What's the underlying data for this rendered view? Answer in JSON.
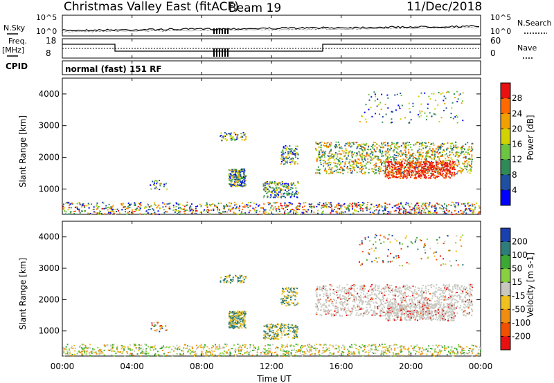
{
  "header": {
    "station": "Christmas Valley East (fitACF)",
    "beam": "Beam 19",
    "date": "11/Dec/2018"
  },
  "noise_panel": {
    "left_label": "N.Sky",
    "right_label": "N.Search",
    "left_ticks": [
      "10^5",
      "10^0"
    ],
    "right_ticks": [
      "10^5",
      "10^0"
    ]
  },
  "freq_panel": {
    "left_label_1": "Freq.",
    "left_label_2": "[MHz]",
    "right_label": "Nave",
    "left_ticks": [
      "18",
      "8"
    ],
    "right_ticks": [
      "60",
      "0"
    ],
    "cpid_label": "CPID",
    "cpid_text": "normal (fast) 151 RF"
  },
  "chart_data": [
    {
      "type": "heatmap",
      "ylabel": "Slant Range [km]",
      "yticks": [
        "4000",
        "3000",
        "2000",
        "1000"
      ],
      "ylim": [
        200,
        4500
      ],
      "colorbar_label": "Power [dB]",
      "colorbar_ticks": [
        "28",
        "24",
        "20",
        "16",
        "12",
        "8",
        "4"
      ],
      "colorbar_colors": [
        "#e81010",
        "#ff6a00",
        "#f0a000",
        "#d2d200",
        "#6cc440",
        "#2e8b57",
        "#1e4fa0",
        "#0000ff"
      ]
    },
    {
      "type": "heatmap",
      "ylabel": "Slant Range [km]",
      "yticks": [
        "4000",
        "3000",
        "2000",
        "1000"
      ],
      "ylim": [
        200,
        4500
      ],
      "colorbar_label": "Velocity [m s-1]",
      "colorbar_ticks": [
        "200",
        "100",
        "50",
        "15",
        "-15",
        "-50",
        "-100",
        "-200"
      ],
      "colorbar_colors": [
        "#1a3fae",
        "#2e7d7a",
        "#3aa832",
        "#88d040",
        "#c8c8c0",
        "#f0c020",
        "#f08c10",
        "#f05000",
        "#e81010"
      ]
    }
  ],
  "x_axis": {
    "ticks": [
      "00:00",
      "04:00",
      "08:00",
      "12:00",
      "16:00",
      "20:00",
      "00:00"
    ],
    "xlabel": "Time UT"
  }
}
